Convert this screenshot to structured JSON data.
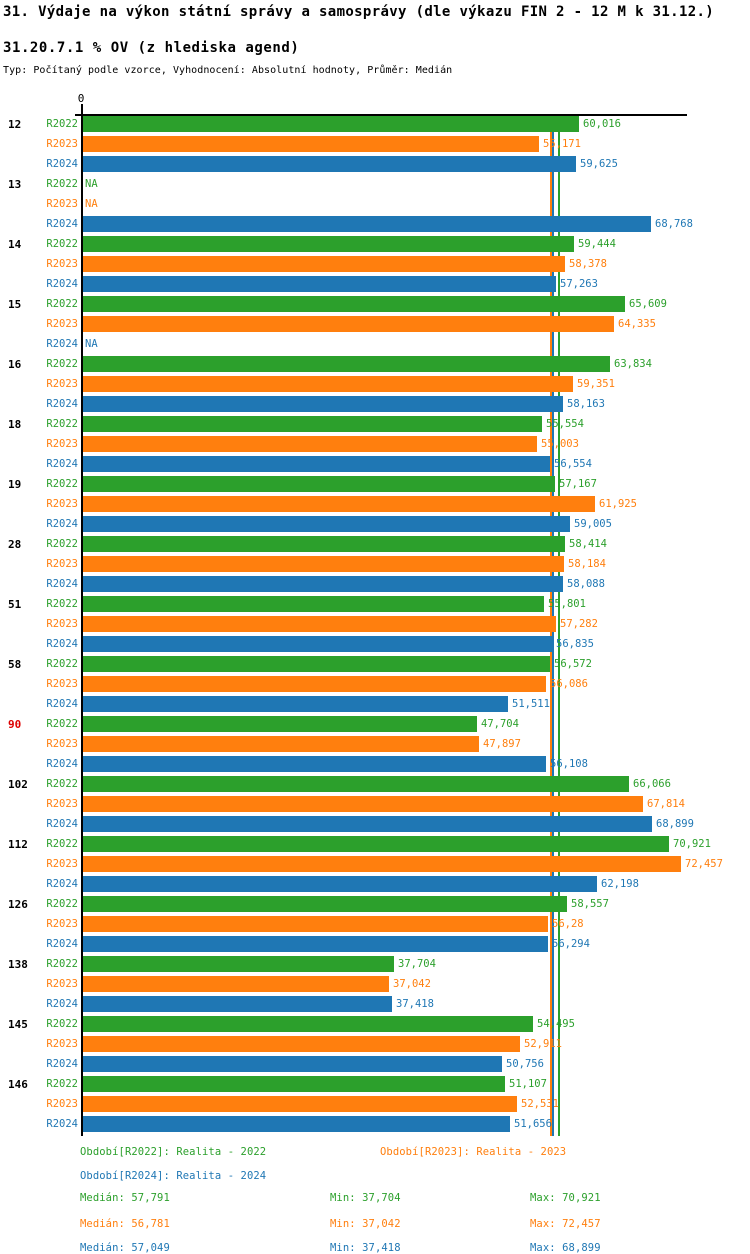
{
  "title": "31. Výdaje na výkon státní správy a samosprávy (dle výkazu FIN 2 - 12 M k 31.12.)",
  "subtitle": "31.20.7.1 % OV (z hlediska agend)",
  "meta": "Typ: Počítaný podle vzorce, Vyhodnocení: Absolutní hodnoty, Průměr: Medián",
  "axis": {
    "zero_label": "0",
    "max_value": 73.3
  },
  "colors": {
    "R2022": "#2ca02c",
    "R2023": "#ff7f0e",
    "R2024": "#1f77b4",
    "group_label": "#000000",
    "group_label_alert": "#dd0000",
    "axis": "#000000",
    "na_value": null
  },
  "chart_data": {
    "type": "bar",
    "orientation": "horizontal",
    "value_unit": "% OV",
    "series_names": [
      "R2022",
      "R2023",
      "R2024"
    ],
    "xlim": [
      0,
      73.3
    ],
    "groups": [
      {
        "id": "12",
        "alert": false,
        "bars": [
          {
            "series": "R2022",
            "value": 60.016,
            "label": "60,016"
          },
          {
            "series": "R2023",
            "value": 55.171,
            "label": "55,171"
          },
          {
            "series": "R2024",
            "value": 59.625,
            "label": "59,625"
          }
        ]
      },
      {
        "id": "13",
        "alert": false,
        "bars": [
          {
            "series": "R2022",
            "value": null,
            "label": "NA"
          },
          {
            "series": "R2023",
            "value": null,
            "label": "NA"
          },
          {
            "series": "R2024",
            "value": 68.768,
            "label": "68,768"
          }
        ]
      },
      {
        "id": "14",
        "alert": false,
        "bars": [
          {
            "series": "R2022",
            "value": 59.444,
            "label": "59,444"
          },
          {
            "series": "R2023",
            "value": 58.378,
            "label": "58,378"
          },
          {
            "series": "R2024",
            "value": 57.263,
            "label": "57,263"
          }
        ]
      },
      {
        "id": "15",
        "alert": false,
        "bars": [
          {
            "series": "R2022",
            "value": 65.609,
            "label": "65,609"
          },
          {
            "series": "R2023",
            "value": 64.335,
            "label": "64,335"
          },
          {
            "series": "R2024",
            "value": null,
            "label": "NA"
          }
        ]
      },
      {
        "id": "16",
        "alert": false,
        "bars": [
          {
            "series": "R2022",
            "value": 63.834,
            "label": "63,834"
          },
          {
            "series": "R2023",
            "value": 59.351,
            "label": "59,351"
          },
          {
            "series": "R2024",
            "value": 58.163,
            "label": "58,163"
          }
        ]
      },
      {
        "id": "18",
        "alert": false,
        "bars": [
          {
            "series": "R2022",
            "value": 55.554,
            "label": "55,554"
          },
          {
            "series": "R2023",
            "value": 55.003,
            "label": "55,003"
          },
          {
            "series": "R2024",
            "value": 56.554,
            "label": "56,554"
          }
        ]
      },
      {
        "id": "19",
        "alert": false,
        "bars": [
          {
            "series": "R2022",
            "value": 57.167,
            "label": "57,167"
          },
          {
            "series": "R2023",
            "value": 61.925,
            "label": "61,925"
          },
          {
            "series": "R2024",
            "value": 59.005,
            "label": "59,005"
          }
        ]
      },
      {
        "id": "28",
        "alert": false,
        "bars": [
          {
            "series": "R2022",
            "value": 58.414,
            "label": "58,414"
          },
          {
            "series": "R2023",
            "value": 58.184,
            "label": "58,184"
          },
          {
            "series": "R2024",
            "value": 58.088,
            "label": "58,088"
          }
        ]
      },
      {
        "id": "51",
        "alert": false,
        "bars": [
          {
            "series": "R2022",
            "value": 55.801,
            "label": "55,801"
          },
          {
            "series": "R2023",
            "value": 57.282,
            "label": "57,282"
          },
          {
            "series": "R2024",
            "value": 56.835,
            "label": "56,835"
          }
        ]
      },
      {
        "id": "58",
        "alert": false,
        "bars": [
          {
            "series": "R2022",
            "value": 56.572,
            "label": "56,572"
          },
          {
            "series": "R2023",
            "value": 56.086,
            "label": "56,086"
          },
          {
            "series": "R2024",
            "value": 51.511,
            "label": "51,511"
          }
        ]
      },
      {
        "id": "90",
        "alert": true,
        "bars": [
          {
            "series": "R2022",
            "value": 47.704,
            "label": "47,704"
          },
          {
            "series": "R2023",
            "value": 47.897,
            "label": "47,897"
          },
          {
            "series": "R2024",
            "value": 56.108,
            "label": "56,108"
          }
        ]
      },
      {
        "id": "102",
        "alert": false,
        "bars": [
          {
            "series": "R2022",
            "value": 66.066,
            "label": "66,066"
          },
          {
            "series": "R2023",
            "value": 67.814,
            "label": "67,814"
          },
          {
            "series": "R2024",
            "value": 68.899,
            "label": "68,899"
          }
        ]
      },
      {
        "id": "112",
        "alert": false,
        "bars": [
          {
            "series": "R2022",
            "value": 70.921,
            "label": "70,921"
          },
          {
            "series": "R2023",
            "value": 72.457,
            "label": "72,457"
          },
          {
            "series": "R2024",
            "value": 62.198,
            "label": "62,198"
          }
        ]
      },
      {
        "id": "126",
        "alert": false,
        "bars": [
          {
            "series": "R2022",
            "value": 58.557,
            "label": "58,557"
          },
          {
            "series": "R2023",
            "value": 56.28,
            "label": "56,28"
          },
          {
            "series": "R2024",
            "value": 56.294,
            "label": "56,294"
          }
        ]
      },
      {
        "id": "138",
        "alert": false,
        "bars": [
          {
            "series": "R2022",
            "value": 37.704,
            "label": "37,704"
          },
          {
            "series": "R2023",
            "value": 37.042,
            "label": "37,042"
          },
          {
            "series": "R2024",
            "value": 37.418,
            "label": "37,418"
          }
        ]
      },
      {
        "id": "145",
        "alert": false,
        "bars": [
          {
            "series": "R2022",
            "value": 54.495,
            "label": "54,495"
          },
          {
            "series": "R2023",
            "value": 52.911,
            "label": "52,911"
          },
          {
            "series": "R2024",
            "value": 50.756,
            "label": "50,756"
          }
        ]
      },
      {
        "id": "146",
        "alert": false,
        "bars": [
          {
            "series": "R2022",
            "value": 51.107,
            "label": "51,107"
          },
          {
            "series": "R2023",
            "value": 52.531,
            "label": "52,531"
          },
          {
            "series": "R2024",
            "value": 51.656,
            "label": "51,656"
          }
        ]
      }
    ],
    "median_lines": [
      {
        "series": "R2022",
        "value": 57.791
      },
      {
        "series": "R2023",
        "value": 56.781
      },
      {
        "series": "R2024",
        "value": 57.049
      }
    ]
  },
  "legend": {
    "periods": [
      {
        "series": "R2022",
        "text": "Období[R2022]: Realita - 2022"
      },
      {
        "series": "R2023",
        "text": "Období[R2023]: Realita - 2023"
      },
      {
        "series": "R2024",
        "text": "Období[R2024]: Realita - 2024"
      }
    ],
    "stats": [
      {
        "series": "R2022",
        "median": "Medián: 57,791",
        "min": "Min: 37,704",
        "max": "Max: 70,921"
      },
      {
        "series": "R2023",
        "median": "Medián: 56,781",
        "min": "Min: 37,042",
        "max": "Max: 72,457"
      },
      {
        "series": "R2024",
        "median": "Medián: 57,049",
        "min": "Min: 37,418",
        "max": "Max: 68,899"
      }
    ]
  }
}
